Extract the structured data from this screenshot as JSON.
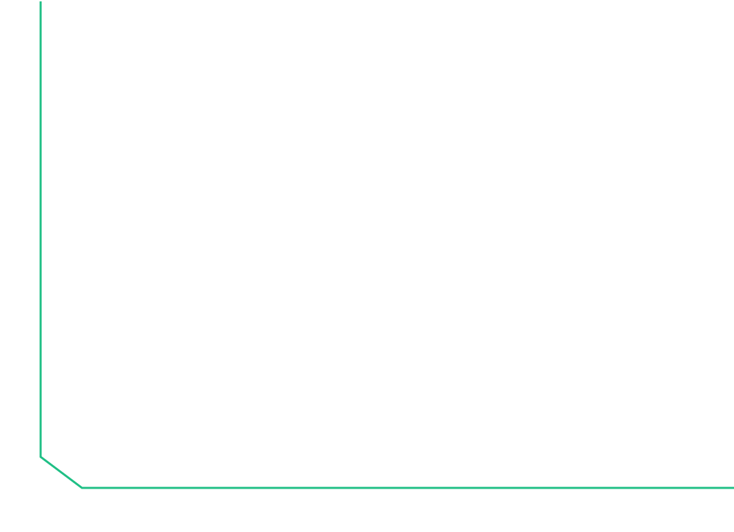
{
  "frame": {
    "stroke_color": "#1fbf85",
    "background_color": "#ffffff"
  }
}
